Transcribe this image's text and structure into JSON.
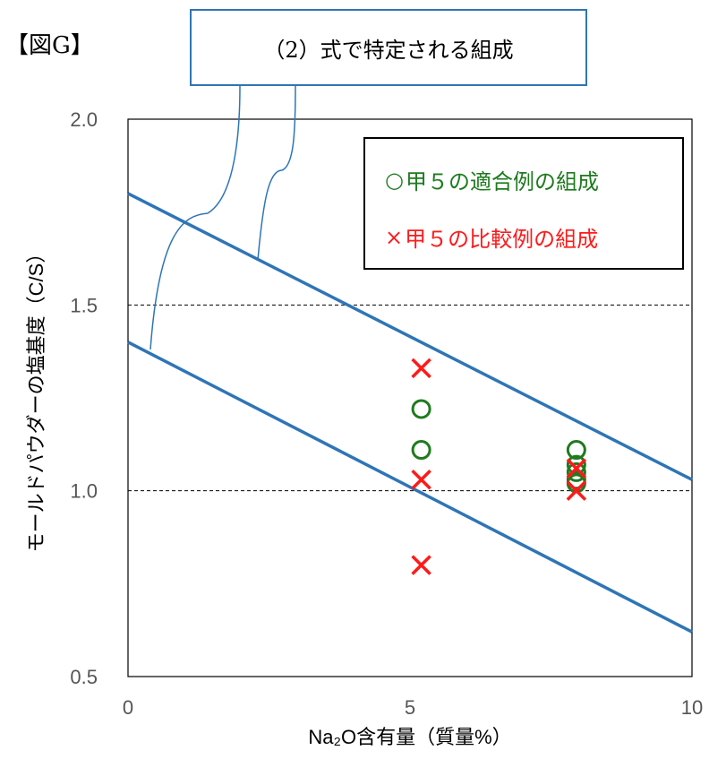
{
  "figure_label": "【図G】",
  "callout_text": "（2）式で特定される組成",
  "legend": {
    "ok_symbol": "○",
    "ok_text": "甲５の適合例の組成",
    "ng_symbol": "×",
    "ng_text": "甲５の比較例の組成"
  },
  "colors": {
    "ok": "#1e7b1e",
    "ng": "#ff1a1a",
    "line": "#2e75b6"
  },
  "chart_data": {
    "type": "scatter",
    "xlabel": "Na₂O含有量（質量%）",
    "ylabel": "モールドパウダーの塩基度（C/S）",
    "xlim": [
      0,
      10
    ],
    "ylim": [
      0.5,
      2.0
    ],
    "xticks": [
      "0",
      "5",
      "10"
    ],
    "yticks": [
      "0.5",
      "1.0",
      "1.5",
      "2.0"
    ],
    "gridlines_y": [
      1.0,
      1.5
    ],
    "boundary_lines": [
      {
        "x": [
          0,
          10
        ],
        "y": [
          1.8,
          1.03
        ]
      },
      {
        "x": [
          0,
          10
        ],
        "y": [
          1.4,
          0.62
        ]
      }
    ],
    "series": [
      {
        "marker": "circle",
        "points": [
          [
            5.2,
            1.22
          ],
          [
            5.2,
            1.11
          ],
          [
            7.95,
            1.11
          ],
          [
            7.95,
            1.07
          ],
          [
            7.95,
            1.05
          ],
          [
            7.95,
            1.03
          ],
          [
            7.95,
            1.02
          ]
        ]
      },
      {
        "marker": "cross",
        "points": [
          [
            5.2,
            1.33
          ],
          [
            5.2,
            1.03
          ],
          [
            5.2,
            0.8
          ],
          [
            7.95,
            1.06
          ],
          [
            7.95,
            1.0
          ]
        ]
      }
    ]
  }
}
